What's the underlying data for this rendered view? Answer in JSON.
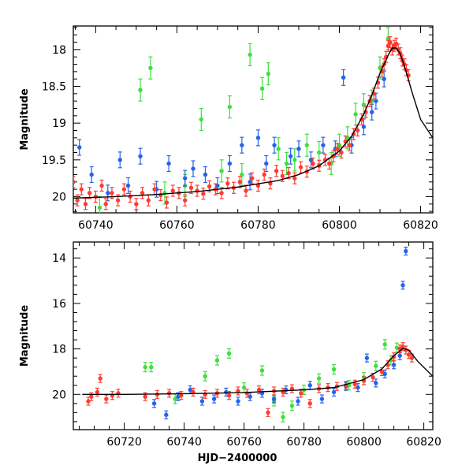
{
  "chart_data": [
    {
      "type": "scatter",
      "panel": "top",
      "xlim": [
        60734.5,
        60823
      ],
      "ylim": [
        20.22,
        17.68
      ],
      "y_inverted": true,
      "ylabel": "Magnitude",
      "xlabel": "",
      "x_ticks": [
        60740,
        60760,
        60780,
        60800,
        60820
      ],
      "x_tick_labels": [
        "60740",
        "60760",
        "60780",
        "60800",
        "60820"
      ],
      "y_ticks": [
        18,
        18.5,
        19,
        19.5,
        20
      ],
      "y_tick_labels": [
        "18",
        "18.5",
        "19",
        "19.5",
        "20"
      ],
      "grid": false,
      "legend": "none",
      "model_curve": {
        "color": "#000000",
        "x": [
          60734.5,
          60745,
          60755,
          60765,
          60775,
          60785,
          60790,
          60795,
          60800,
          60803,
          60806,
          60808,
          60810,
          60812,
          60813,
          60814,
          60815,
          60816,
          60818,
          60820,
          60823
        ],
        "y": [
          20.02,
          20.0,
          19.97,
          19.93,
          19.87,
          19.78,
          19.7,
          19.58,
          19.38,
          19.18,
          18.88,
          18.62,
          18.32,
          18.08,
          17.98,
          17.98,
          18.06,
          18.22,
          18.6,
          18.95,
          19.2
        ]
      },
      "series": [
        {
          "color": "#ff3b30",
          "x": [
            60734.5,
            60735.5,
            60736.5,
            60737.5,
            60738.5,
            60740,
            60741.5,
            60742.5,
            60744,
            60745.5,
            60747,
            60748.5,
            60750,
            60751.5,
            60753,
            60754.5,
            60756,
            60757.5,
            60759,
            60760.5,
            60762,
            60763.5,
            60765,
            60766.5,
            60768,
            60769.5,
            60771,
            60772.5,
            60774,
            60775.5,
            60777,
            60778.5,
            60780,
            60781.5,
            60783,
            60784.5,
            60786,
            60787.5,
            60789,
            60790.5,
            60792,
            60793.5,
            60795,
            60796.5,
            60797.5,
            60798.5,
            60799.5,
            60800.5,
            60801.5,
            60802.5,
            60803.5,
            60804.5,
            60805.5,
            60806.5,
            60807.5,
            60808.5,
            60809.5,
            60810.5,
            60811,
            60811.5,
            60812,
            60812.5,
            60813,
            60813.5,
            60814,
            60814.5,
            60815,
            60815.5,
            60816,
            60816.5,
            60817
          ],
          "y": [
            19.8,
            20.05,
            19.9,
            20.1,
            19.95,
            20.0,
            19.85,
            20.1,
            19.95,
            20.05,
            19.9,
            20.0,
            20.1,
            19.95,
            20.05,
            19.9,
            19.98,
            20.08,
            19.92,
            19.95,
            20.05,
            19.88,
            19.92,
            19.96,
            19.86,
            19.9,
            19.95,
            19.82,
            19.88,
            19.8,
            19.92,
            19.75,
            19.85,
            19.7,
            19.82,
            19.65,
            19.72,
            19.68,
            19.75,
            19.6,
            19.66,
            19.55,
            19.58,
            19.5,
            19.55,
            19.45,
            19.35,
            19.4,
            19.25,
            19.3,
            19.15,
            19.1,
            18.95,
            18.85,
            18.7,
            18.6,
            18.45,
            18.3,
            18.2,
            18.1,
            17.95,
            17.9,
            18.0,
            17.95,
            17.92,
            18.0,
            18.05,
            18.15,
            18.2,
            18.28,
            18.35
          ]
        },
        {
          "color": "#2563eb",
          "x": [
            60736,
            60739,
            60743,
            60746,
            60748,
            60751,
            60755,
            60758,
            60762,
            60764,
            60767,
            60770,
            60773,
            60776,
            60778,
            60780,
            60782,
            60784,
            60788,
            60790,
            60793,
            60796,
            60799,
            60801,
            60803,
            60806,
            60808,
            60809,
            60811
          ],
          "y": [
            19.33,
            19.7,
            19.95,
            19.5,
            19.85,
            19.45,
            19.9,
            19.55,
            19.75,
            19.62,
            19.7,
            19.85,
            19.55,
            19.3,
            19.8,
            19.2,
            19.55,
            19.3,
            19.45,
            19.35,
            19.5,
            19.3,
            19.35,
            18.38,
            19.3,
            19.05,
            18.85,
            18.7,
            18.4
          ]
        },
        {
          "color": "#3de03d",
          "x": [
            60741,
            60751,
            60753.5,
            60757,
            60762,
            60766,
            60771,
            60773,
            60776,
            60778,
            60781,
            60782.5,
            60785,
            60787,
            60789,
            60792,
            60795,
            60798,
            60800,
            60802,
            60804,
            60806,
            60808,
            60810,
            60812
          ],
          "y": [
            20.15,
            18.55,
            18.25,
            19.95,
            19.85,
            18.95,
            19.65,
            18.78,
            19.7,
            18.07,
            18.53,
            18.33,
            19.35,
            19.55,
            19.5,
            19.3,
            19.4,
            19.55,
            19.3,
            19.2,
            18.88,
            18.75,
            18.7,
            18.25,
            17.85
          ]
        }
      ]
    },
    {
      "type": "scatter",
      "panel": "bottom",
      "xlim": [
        60703,
        60823
      ],
      "ylim": [
        21.55,
        13.3
      ],
      "y_inverted": true,
      "ylabel": "Magnitude",
      "xlabel": "HJD−2400000",
      "x_ticks": [
        60720,
        60740,
        60760,
        60780,
        60800,
        60820
      ],
      "x_tick_labels": [
        "60720",
        "60740",
        "60760",
        "60780",
        "60800",
        "60820"
      ],
      "y_ticks": [
        14,
        16,
        18,
        20
      ],
      "y_tick_labels": [
        "14",
        "16",
        "18",
        "20"
      ],
      "grid": false,
      "legend": "none",
      "model_curve": {
        "color": "#000000",
        "x": [
          60706,
          60720,
          60740,
          60760,
          60780,
          60790,
          60800,
          60806,
          60810,
          60813,
          60815,
          60818,
          60823
        ],
        "y": [
          20.0,
          20.0,
          19.97,
          19.92,
          19.8,
          19.7,
          19.35,
          18.88,
          18.3,
          17.98,
          18.05,
          18.55,
          19.2
        ]
      },
      "series": [
        {
          "color": "#ff3b30",
          "x": [
            60708,
            60709,
            60711,
            60712,
            60714,
            60716,
            60718,
            60727,
            60731,
            60735,
            60739,
            60743,
            60747,
            60751,
            60755,
            60758,
            60761,
            60765,
            60768,
            60770,
            60773,
            60776,
            60779,
            60782,
            60785,
            60788,
            60791,
            60794,
            60797,
            60800,
            60803,
            60806,
            60808,
            60810,
            60812,
            60813,
            60814,
            60815,
            60816
          ],
          "y": [
            20.3,
            20.1,
            19.9,
            19.3,
            20.2,
            20.05,
            19.95,
            20.1,
            20.0,
            19.95,
            20.05,
            19.9,
            20.0,
            19.95,
            20.05,
            19.85,
            19.95,
            19.8,
            20.8,
            19.85,
            19.9,
            19.75,
            19.95,
            20.4,
            19.75,
            19.7,
            19.65,
            19.6,
            19.55,
            19.4,
            19.25,
            19.0,
            18.7,
            18.35,
            18.0,
            17.9,
            18.05,
            18.25,
            18.4
          ]
        },
        {
          "color": "#2563eb",
          "x": [
            60730,
            60734,
            60738,
            60742,
            60746,
            60750,
            60754,
            60758,
            60762,
            60766,
            60770,
            60774,
            60778,
            60782,
            60786,
            60790,
            60794,
            60798,
            60801,
            60804,
            60807,
            60810,
            60812,
            60813,
            60814
          ],
          "y": [
            20.4,
            20.9,
            20.1,
            19.8,
            20.3,
            20.2,
            19.9,
            20.3,
            20.1,
            19.95,
            20.2,
            19.8,
            20.3,
            19.6,
            20.2,
            19.9,
            19.65,
            19.7,
            18.4,
            19.5,
            19.1,
            18.7,
            18.3,
            15.2,
            13.7
          ]
        },
        {
          "color": "#3de03d",
          "x": [
            60727,
            60729,
            60737,
            60747,
            60751,
            60755,
            60760,
            60766,
            60770,
            60773,
            60776,
            60780,
            60785,
            60790,
            60795,
            60800,
            60804,
            60807,
            60809,
            60811
          ],
          "y": [
            18.8,
            18.8,
            20.2,
            19.2,
            18.5,
            18.2,
            19.7,
            18.95,
            20.3,
            21.0,
            20.5,
            19.8,
            19.3,
            18.9,
            19.6,
            19.25,
            18.75,
            17.8,
            18.5,
            17.95
          ]
        }
      ]
    }
  ]
}
